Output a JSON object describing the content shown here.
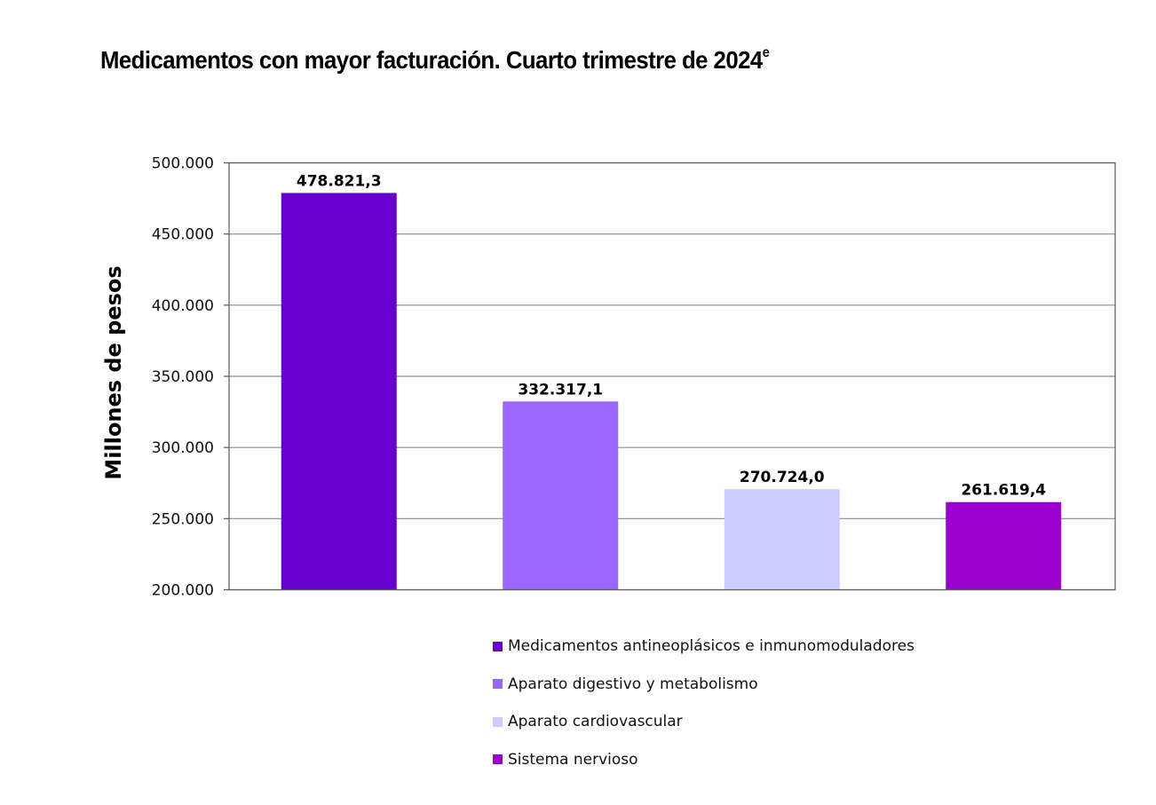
{
  "page": {
    "title": "Medicamentos con mayor facturación. Cuarto trimestre de 2024",
    "title_superscript": "e"
  },
  "chart_data": {
    "type": "bar",
    "title": "Medicamentos con mayor facturación. Cuarto trimestre de 2024",
    "ylabel": "Millones de pesos",
    "xlabel": "",
    "ylim": [
      200000,
      500000
    ],
    "yticks": [
      200000,
      250000,
      300000,
      350000,
      400000,
      450000,
      500000
    ],
    "ytick_labels": [
      "200.000",
      "250.000",
      "300.000",
      "350.000",
      "400.000",
      "450.000",
      "500.000"
    ],
    "grid": true,
    "legend_position": "bottom",
    "categories": [
      "Medicamentos antineoplásicos e inmunomoduladores",
      "Aparato digestivo y metabolismo",
      "Aparato cardiovascular",
      "Sistema nervioso"
    ],
    "values": [
      478821.3,
      332317.1,
      270724.0,
      261619.4
    ],
    "value_labels": [
      "478.821,3",
      "332.317,1",
      "270.724,0",
      "261.619,4"
    ],
    "colors": [
      "#6600CC",
      "#9966FF",
      "#CCCCFF",
      "#9900CC"
    ]
  }
}
